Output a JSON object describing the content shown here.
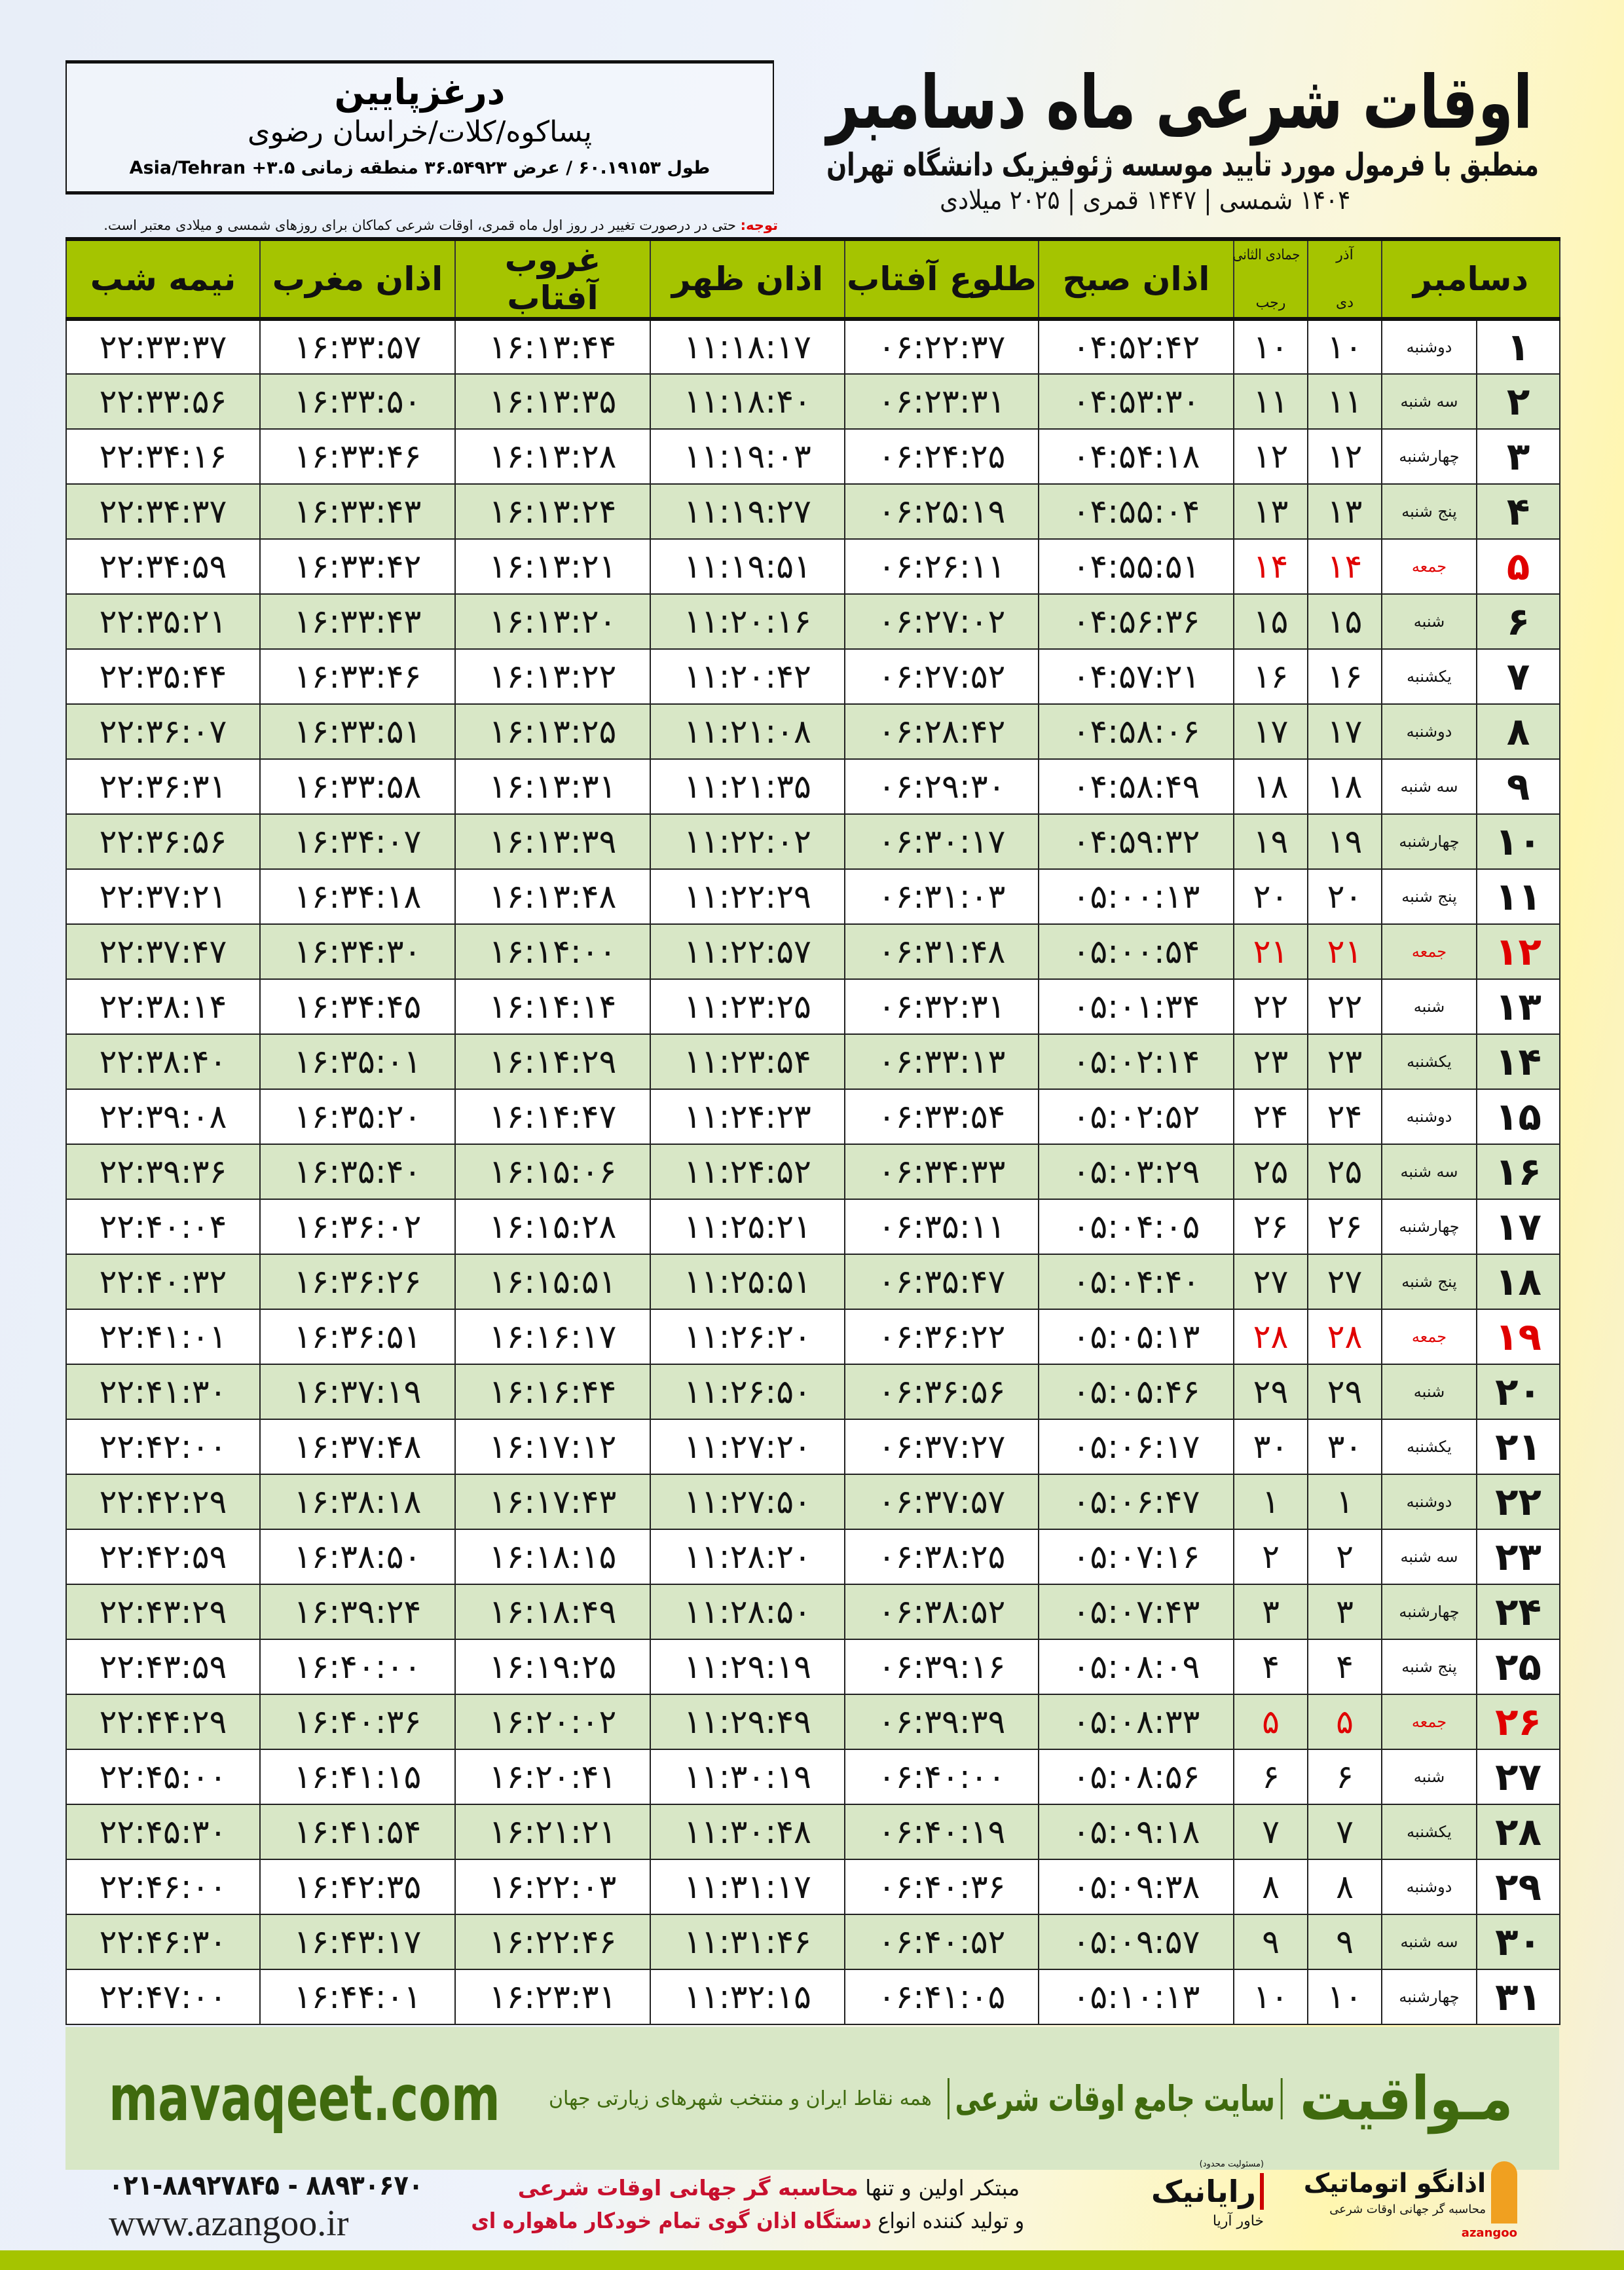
{
  "header": {
    "title": "اوقات شرعی ماه دسامبر",
    "subtitle": "منطبق با فرمول مورد تایید موسسه ژئوفیزیک دانشگاه تهران",
    "dateline": "۱۴۰۴ شمسی | ۱۴۴۷ قمری | ۲۰۲۵ میلادی"
  },
  "location": {
    "name": "درغزپایین",
    "region": "پساکوه/کلات/خراسان رضوی",
    "coords": "طول ۶۰.۱۹۱۵۳ / عرض ۳۶.۵۴۹۲۳ منطقه زمانی ۳.۵+ Asia/Tehran"
  },
  "note": {
    "label": "توجه:",
    "text": " حتی در درصورت تغییر در روز اول ماه قمری، اوقات شرعی کماکان برای روزهای شمسی و میلادی معتبر است."
  },
  "table": {
    "headers": {
      "month": "دسامبر",
      "azar": "آذر",
      "dey": "دی",
      "jumada": "جمادی الثانی",
      "rajab": "رجب",
      "fajr": "اذان صبح",
      "sunrise": "طلوع آفتاب",
      "dhuhr": "اذان ظهر",
      "sunset": "غروب آفتاب",
      "maghrib": "اذان مغرب",
      "midnight": "نیمه شب"
    },
    "highlight_color": "#e00000",
    "rows": [
      [
        "۱",
        "دوشنبه",
        "۱۰",
        "۱۰",
        "۰۴:۵۲:۴۲",
        "۰۶:۲۲:۳۷",
        "۱۱:۱۸:۱۷",
        "۱۶:۱۳:۴۴",
        "۱۶:۳۳:۵۷",
        "۲۲:۳۳:۳۷"
      ],
      [
        "۲",
        "سه شنبه",
        "۱۱",
        "۱۱",
        "۰۴:۵۳:۳۰",
        "۰۶:۲۳:۳۱",
        "۱۱:۱۸:۴۰",
        "۱۶:۱۳:۳۵",
        "۱۶:۳۳:۵۰",
        "۲۲:۳۳:۵۶"
      ],
      [
        "۳",
        "چهارشنبه",
        "۱۲",
        "۱۲",
        "۰۴:۵۴:۱۸",
        "۰۶:۲۴:۲۵",
        "۱۱:۱۹:۰۳",
        "۱۶:۱۳:۲۸",
        "۱۶:۳۳:۴۶",
        "۲۲:۳۴:۱۶"
      ],
      [
        "۴",
        "پنج شنبه",
        "۱۳",
        "۱۳",
        "۰۴:۵۵:۰۴",
        "۰۶:۲۵:۱۹",
        "۱۱:۱۹:۲۷",
        "۱۶:۱۳:۲۴",
        "۱۶:۳۳:۴۳",
        "۲۲:۳۴:۳۷"
      ],
      [
        "۵",
        "جمعه",
        "۱۴",
        "۱۴",
        "۰۴:۵۵:۵۱",
        "۰۶:۲۶:۱۱",
        "۱۱:۱۹:۵۱",
        "۱۶:۱۳:۲۱",
        "۱۶:۳۳:۴۲",
        "۲۲:۳۴:۵۹"
      ],
      [
        "۶",
        "شنبه",
        "۱۵",
        "۱۵",
        "۰۴:۵۶:۳۶",
        "۰۶:۲۷:۰۲",
        "۱۱:۲۰:۱۶",
        "۱۶:۱۳:۲۰",
        "۱۶:۳۳:۴۳",
        "۲۲:۳۵:۲۱"
      ],
      [
        "۷",
        "یکشنبه",
        "۱۶",
        "۱۶",
        "۰۴:۵۷:۲۱",
        "۰۶:۲۷:۵۲",
        "۱۱:۲۰:۴۲",
        "۱۶:۱۳:۲۲",
        "۱۶:۳۳:۴۶",
        "۲۲:۳۵:۴۴"
      ],
      [
        "۸",
        "دوشنبه",
        "۱۷",
        "۱۷",
        "۰۴:۵۸:۰۶",
        "۰۶:۲۸:۴۲",
        "۱۱:۲۱:۰۸",
        "۱۶:۱۳:۲۵",
        "۱۶:۳۳:۵۱",
        "۲۲:۳۶:۰۷"
      ],
      [
        "۹",
        "سه شنبه",
        "۱۸",
        "۱۸",
        "۰۴:۵۸:۴۹",
        "۰۶:۲۹:۳۰",
        "۱۱:۲۱:۳۵",
        "۱۶:۱۳:۳۱",
        "۱۶:۳۳:۵۸",
        "۲۲:۳۶:۳۱"
      ],
      [
        "۱۰",
        "چهارشنبه",
        "۱۹",
        "۱۹",
        "۰۴:۵۹:۳۲",
        "۰۶:۳۰:۱۷",
        "۱۱:۲۲:۰۲",
        "۱۶:۱۳:۳۹",
        "۱۶:۳۴:۰۷",
        "۲۲:۳۶:۵۶"
      ],
      [
        "۱۱",
        "پنج شنبه",
        "۲۰",
        "۲۰",
        "۰۵:۰۰:۱۳",
        "۰۶:۳۱:۰۳",
        "۱۱:۲۲:۲۹",
        "۱۶:۱۳:۴۸",
        "۱۶:۳۴:۱۸",
        "۲۲:۳۷:۲۱"
      ],
      [
        "۱۲",
        "جمعه",
        "۲۱",
        "۲۱",
        "۰۵:۰۰:۵۴",
        "۰۶:۳۱:۴۸",
        "۱۱:۲۲:۵۷",
        "۱۶:۱۴:۰۰",
        "۱۶:۳۴:۳۰",
        "۲۲:۳۷:۴۷"
      ],
      [
        "۱۳",
        "شنبه",
        "۲۲",
        "۲۲",
        "۰۵:۰۱:۳۴",
        "۰۶:۳۲:۳۱",
        "۱۱:۲۳:۲۵",
        "۱۶:۱۴:۱۴",
        "۱۶:۳۴:۴۵",
        "۲۲:۳۸:۱۴"
      ],
      [
        "۱۴",
        "یکشنبه",
        "۲۳",
        "۲۳",
        "۰۵:۰۲:۱۴",
        "۰۶:۳۳:۱۳",
        "۱۱:۲۳:۵۴",
        "۱۶:۱۴:۲۹",
        "۱۶:۳۵:۰۱",
        "۲۲:۳۸:۴۰"
      ],
      [
        "۱۵",
        "دوشنبه",
        "۲۴",
        "۲۴",
        "۰۵:۰۲:۵۲",
        "۰۶:۳۳:۵۴",
        "۱۱:۲۴:۲۳",
        "۱۶:۱۴:۴۷",
        "۱۶:۳۵:۲۰",
        "۲۲:۳۹:۰۸"
      ],
      [
        "۱۶",
        "سه شنبه",
        "۲۵",
        "۲۵",
        "۰۵:۰۳:۲۹",
        "۰۶:۳۴:۳۳",
        "۱۱:۲۴:۵۲",
        "۱۶:۱۵:۰۶",
        "۱۶:۳۵:۴۰",
        "۲۲:۳۹:۳۶"
      ],
      [
        "۱۷",
        "چهارشنبه",
        "۲۶",
        "۲۶",
        "۰۵:۰۴:۰۵",
        "۰۶:۳۵:۱۱",
        "۱۱:۲۵:۲۱",
        "۱۶:۱۵:۲۸",
        "۱۶:۳۶:۰۲",
        "۲۲:۴۰:۰۴"
      ],
      [
        "۱۸",
        "پنج شنبه",
        "۲۷",
        "۲۷",
        "۰۵:۰۴:۴۰",
        "۰۶:۳۵:۴۷",
        "۱۱:۲۵:۵۱",
        "۱۶:۱۵:۵۱",
        "۱۶:۳۶:۲۶",
        "۲۲:۴۰:۳۲"
      ],
      [
        "۱۹",
        "جمعه",
        "۲۸",
        "۲۸",
        "۰۵:۰۵:۱۳",
        "۰۶:۳۶:۲۲",
        "۱۱:۲۶:۲۰",
        "۱۶:۱۶:۱۷",
        "۱۶:۳۶:۵۱",
        "۲۲:۴۱:۰۱"
      ],
      [
        "۲۰",
        "شنبه",
        "۲۹",
        "۲۹",
        "۰۵:۰۵:۴۶",
        "۰۶:۳۶:۵۶",
        "۱۱:۲۶:۵۰",
        "۱۶:۱۶:۴۴",
        "۱۶:۳۷:۱۹",
        "۲۲:۴۱:۳۰"
      ],
      [
        "۲۱",
        "یکشنبه",
        "۳۰",
        "۳۰",
        "۰۵:۰۶:۱۷",
        "۰۶:۳۷:۲۷",
        "۱۱:۲۷:۲۰",
        "۱۶:۱۷:۱۲",
        "۱۶:۳۷:۴۸",
        "۲۲:۴۲:۰۰"
      ],
      [
        "۲۲",
        "دوشنبه",
        "۱",
        "۱",
        "۰۵:۰۶:۴۷",
        "۰۶:۳۷:۵۷",
        "۱۱:۲۷:۵۰",
        "۱۶:۱۷:۴۳",
        "۱۶:۳۸:۱۸",
        "۲۲:۴۲:۲۹"
      ],
      [
        "۲۳",
        "سه شنبه",
        "۲",
        "۲",
        "۰۵:۰۷:۱۶",
        "۰۶:۳۸:۲۵",
        "۱۱:۲۸:۲۰",
        "۱۶:۱۸:۱۵",
        "۱۶:۳۸:۵۰",
        "۲۲:۴۲:۵۹"
      ],
      [
        "۲۴",
        "چهارشنبه",
        "۳",
        "۳",
        "۰۵:۰۷:۴۳",
        "۰۶:۳۸:۵۲",
        "۱۱:۲۸:۵۰",
        "۱۶:۱۸:۴۹",
        "۱۶:۳۹:۲۴",
        "۲۲:۴۳:۲۹"
      ],
      [
        "۲۵",
        "پنج شنبه",
        "۴",
        "۴",
        "۰۵:۰۸:۰۹",
        "۰۶:۳۹:۱۶",
        "۱۱:۲۹:۱۹",
        "۱۶:۱۹:۲۵",
        "۱۶:۴۰:۰۰",
        "۲۲:۴۳:۵۹"
      ],
      [
        "۲۶",
        "جمعه",
        "۵",
        "۵",
        "۰۵:۰۸:۳۳",
        "۰۶:۳۹:۳۹",
        "۱۱:۲۹:۴۹",
        "۱۶:۲۰:۰۲",
        "۱۶:۴۰:۳۶",
        "۲۲:۴۴:۲۹"
      ],
      [
        "۲۷",
        "شنبه",
        "۶",
        "۶",
        "۰۵:۰۸:۵۶",
        "۰۶:۴۰:۰۰",
        "۱۱:۳۰:۱۹",
        "۱۶:۲۰:۴۱",
        "۱۶:۴۱:۱۵",
        "۲۲:۴۵:۰۰"
      ],
      [
        "۲۸",
        "یکشنبه",
        "۷",
        "۷",
        "۰۵:۰۹:۱۸",
        "۰۶:۴۰:۱۹",
        "۱۱:۳۰:۴۸",
        "۱۶:۲۱:۲۱",
        "۱۶:۴۱:۵۴",
        "۲۲:۴۵:۳۰"
      ],
      [
        "۲۹",
        "دوشنبه",
        "۸",
        "۸",
        "۰۵:۰۹:۳۸",
        "۰۶:۴۰:۳۶",
        "۱۱:۳۱:۱۷",
        "۱۶:۲۲:۰۳",
        "۱۶:۴۲:۳۵",
        "۲۲:۴۶:۰۰"
      ],
      [
        "۳۰",
        "سه شنبه",
        "۹",
        "۹",
        "۰۵:۰۹:۵۷",
        "۰۶:۴۰:۵۲",
        "۱۱:۳۱:۴۶",
        "۱۶:۲۲:۴۶",
        "۱۶:۴۳:۱۷",
        "۲۲:۴۶:۳۰"
      ],
      [
        "۳۱",
        "چهارشنبه",
        "۱۰",
        "۱۰",
        "۰۵:۱۰:۱۳",
        "۰۶:۴۱:۰۵",
        "۱۱:۳۲:۱۵",
        "۱۶:۲۳:۳۱",
        "۱۶:۴۴:۰۱",
        "۲۲:۴۷:۰۰"
      ]
    ]
  },
  "banner": {
    "logo": "مـواقیت",
    "site": "سایت جامع اوقات شرعی",
    "tagline": "همه نقاط ایران و منتخب شهرهای زیارتی جهان",
    "url": "mavaqeet.com"
  },
  "footer": {
    "azangoo": {
      "name": "اذانگو اتوماتیک",
      "sub": "محاسبه گر جهانی اوقات شرعی",
      "latin": "azangoo"
    },
    "rayanik": {
      "name": "رایانیک",
      "sub": "خاور آریا",
      "tag": "(مسئولیت محدود)"
    },
    "promo1": "مبتکر اولین و تنها ",
    "promo1_red": "محاسبه گر جهانی اوقات شرعی",
    "promo2": "و تولید کننده انواع ",
    "promo2_red": "دستگاه اذان گوی تمام خودکار ماهواره ای",
    "phone": "۰۲۱-۸۸۹۲۷۸۴۵ - ۸۸۹۳۰۶۷۰",
    "website": "www.azangoo.ir"
  }
}
